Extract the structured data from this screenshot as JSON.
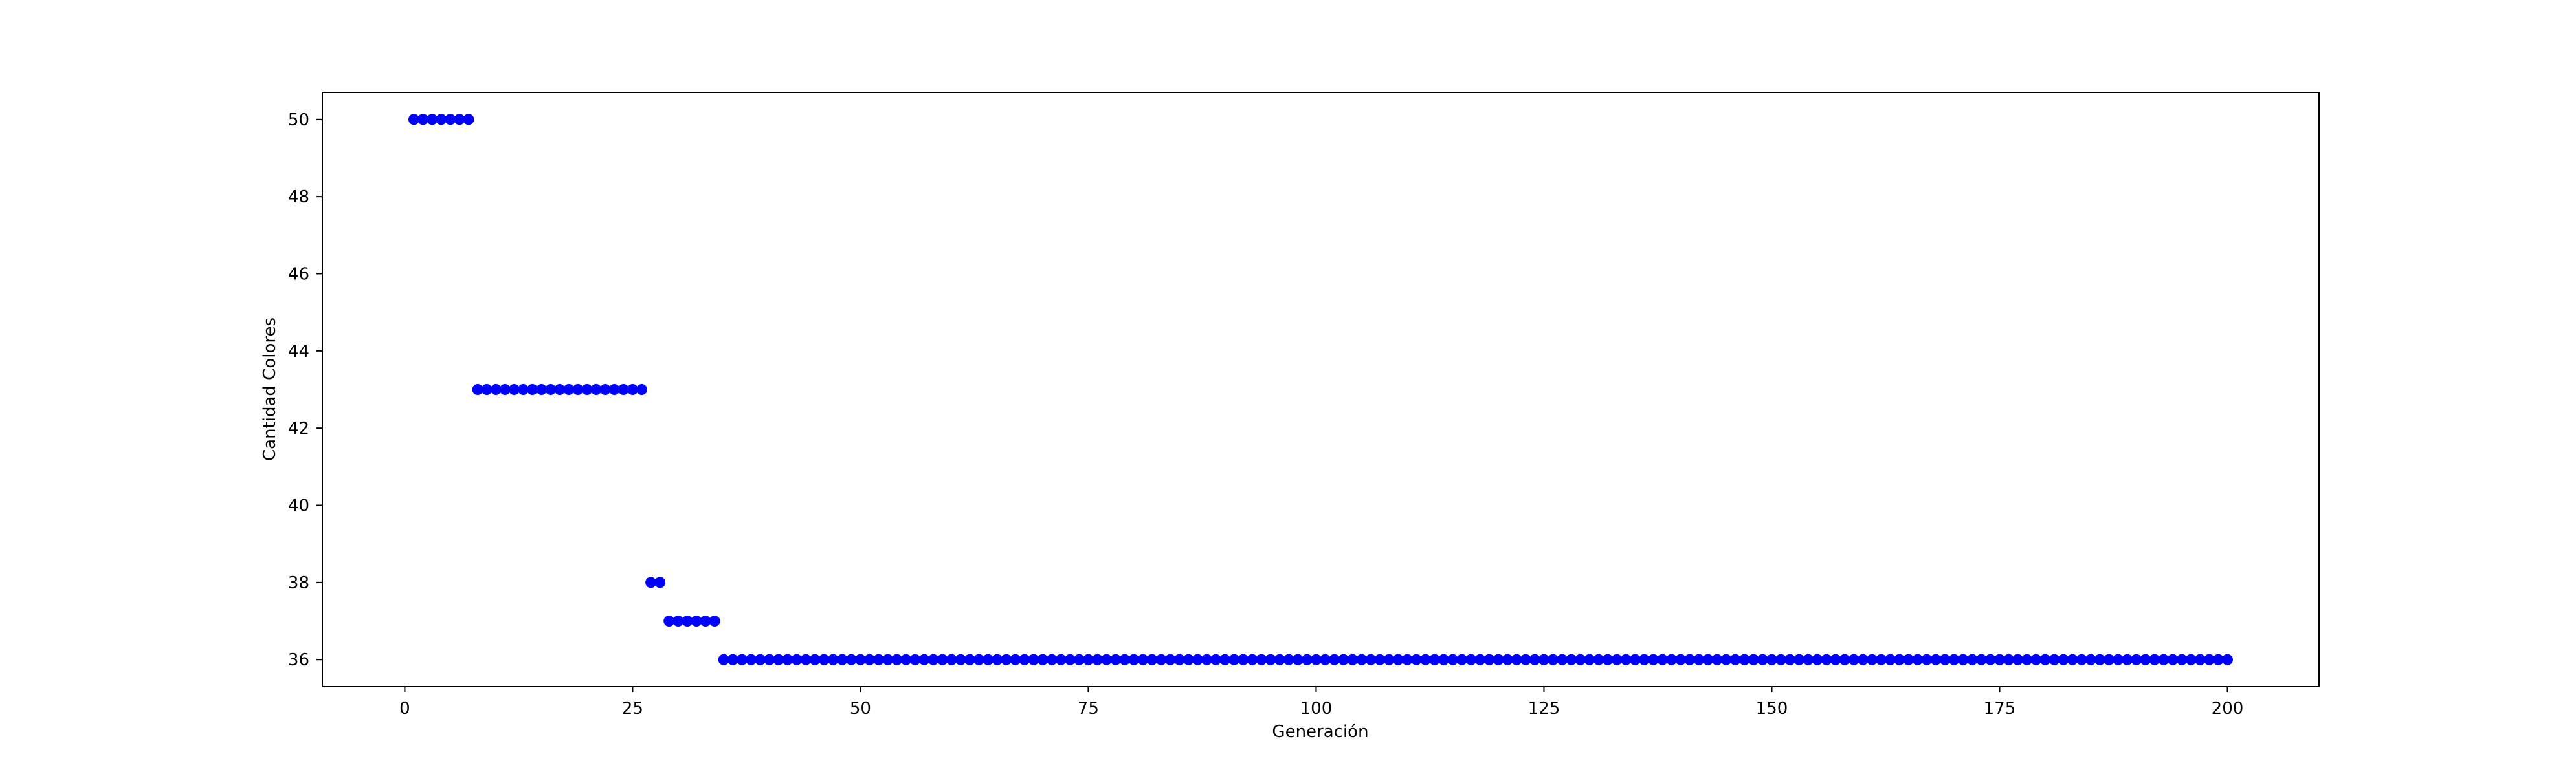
{
  "chart_data": {
    "type": "scatter",
    "title": "",
    "xlabel": "Generación",
    "ylabel": "Cantidad Colores",
    "xlim": [
      -9.05,
      210.05
    ],
    "ylim": [
      35.3,
      50.7
    ],
    "xticks": [
      0,
      25,
      50,
      75,
      100,
      125,
      150,
      175,
      200
    ],
    "yticks": [
      36,
      38,
      40,
      42,
      44,
      46,
      48,
      50
    ],
    "grid": false,
    "marker_color": "#0000ff",
    "segments": [
      {
        "x_start": 1,
        "x_end": 7,
        "y": 50
      },
      {
        "x_start": 8,
        "x_end": 26,
        "y": 43
      },
      {
        "x_start": 27,
        "x_end": 28,
        "y": 38
      },
      {
        "x_start": 29,
        "x_end": 34,
        "y": 37
      },
      {
        "x_start": 35,
        "x_end": 200,
        "y": 36
      }
    ]
  }
}
